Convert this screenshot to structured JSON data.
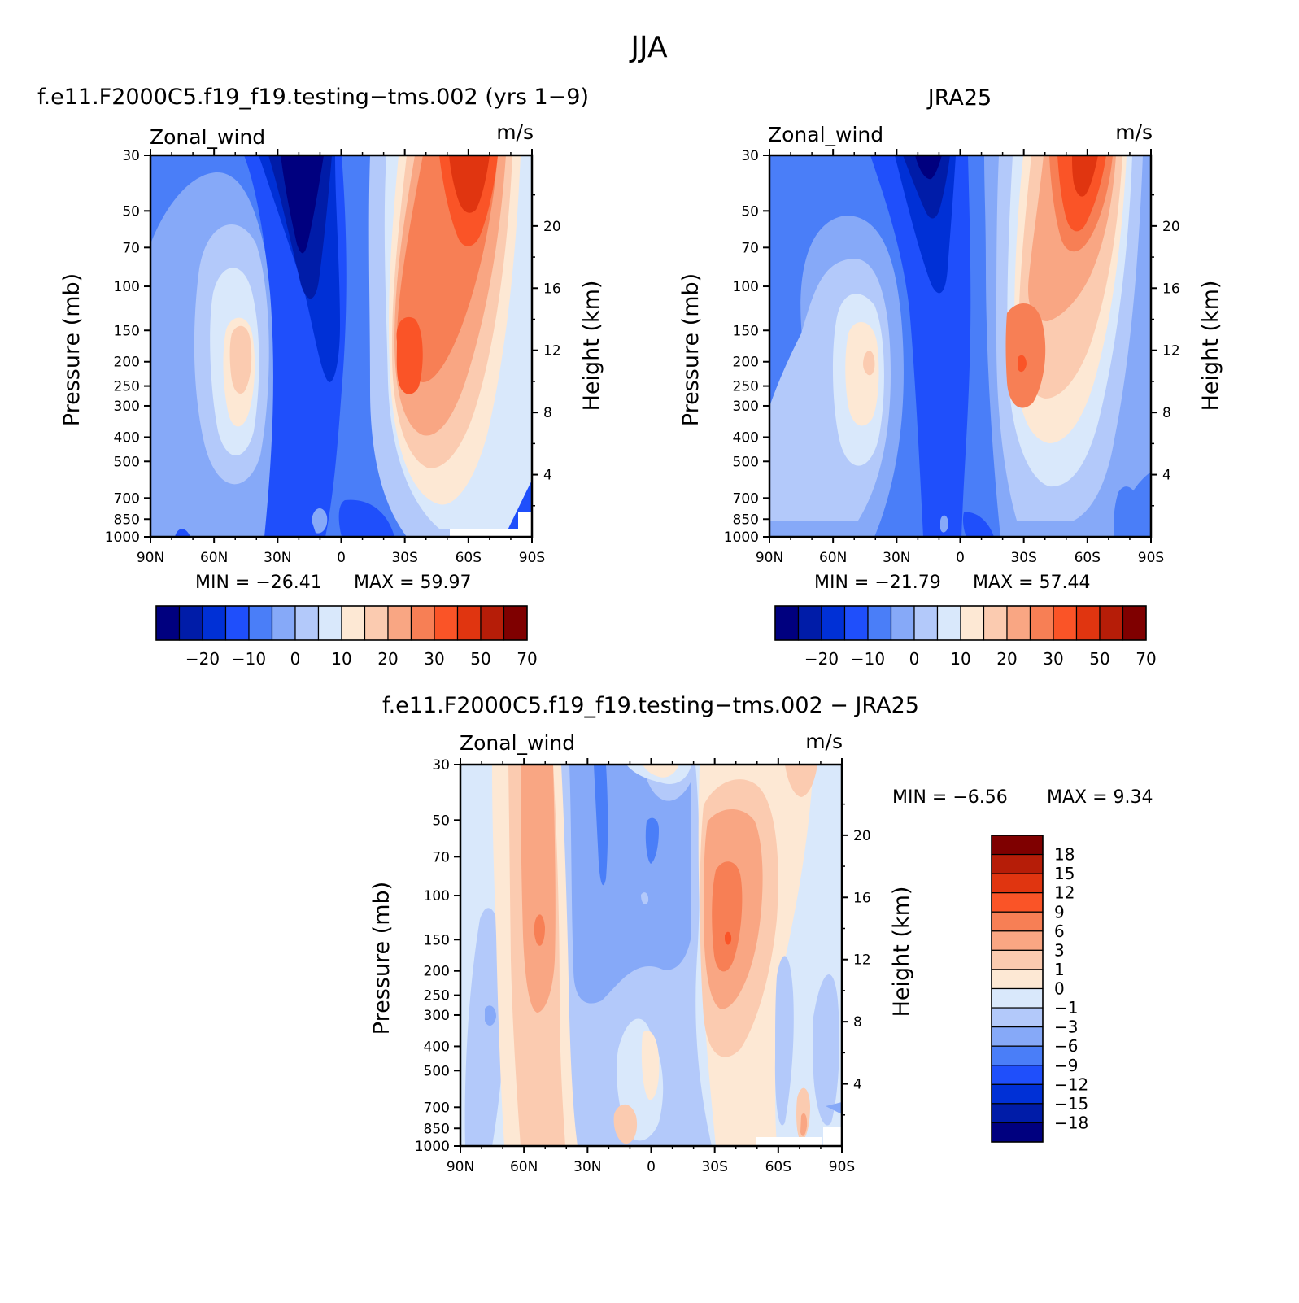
{
  "figure_title": "JJA",
  "colors": {
    "wind_palette": [
      "#00007f",
      "#001ca8",
      "#0030d6",
      "#1f4ffb",
      "#4a7ef8",
      "#86a9f8",
      "#b3c9fa",
      "#d9e8fb",
      "#fde8d4",
      "#fbcbb0",
      "#f9a683",
      "#f77f55",
      "#fa5427",
      "#e03510",
      "#b61d08",
      "#7f0000"
    ],
    "diff_palette": [
      "#00007f",
      "#001ca8",
      "#0030d6",
      "#1f4ffb",
      "#4a7ef8",
      "#86a9f8",
      "#b3c9fa",
      "#d9e8fb",
      "#fde8d4",
      "#fbcbb0",
      "#f9a683",
      "#f77f55",
      "#fa5427",
      "#e03510",
      "#b61d08",
      "#7f0000"
    ]
  },
  "chart_data": [
    {
      "type": "heatmap",
      "title": "f.e11.F2000C5.f19_f19.testing−tms.002 (yrs 1−9)",
      "left_label": "Zonal_wind",
      "right_label": "m/s",
      "ylabel": "Pressure (mb)",
      "y2label": "Height (km)",
      "xticks": [
        "90N",
        "60N",
        "30N",
        "0",
        "30S",
        "60S",
        "90S"
      ],
      "yticks": [
        "30",
        "50",
        "70",
        "100",
        "150",
        "200",
        "250",
        "300",
        "400",
        "500",
        "700",
        "850",
        "1000"
      ],
      "y2ticks": [
        "20",
        "16",
        "12",
        "8",
        "4"
      ],
      "ylim": [
        1000,
        30
      ],
      "y_scale": "log",
      "min_text": "MIN = −26.41",
      "max_text": "MAX = 59.97",
      "min": -26.41,
      "max": 59.97,
      "colorbar_labels": [
        "−20",
        "−10",
        "0",
        "10",
        "20",
        "30",
        "50",
        "70"
      ],
      "colorbar_orientation": "horizontal"
    },
    {
      "type": "heatmap",
      "title": "JRA25",
      "left_label": "Zonal_wind",
      "right_label": "m/s",
      "ylabel": "Pressure (mb)",
      "y2label": "Height (km)",
      "xticks": [
        "90N",
        "60N",
        "30N",
        "0",
        "30S",
        "60S",
        "90S"
      ],
      "yticks": [
        "30",
        "50",
        "70",
        "100",
        "150",
        "200",
        "250",
        "300",
        "400",
        "500",
        "700",
        "850",
        "1000"
      ],
      "y2ticks": [
        "20",
        "16",
        "12",
        "8",
        "4"
      ],
      "ylim": [
        1000,
        30
      ],
      "y_scale": "log",
      "min_text": "MIN = −21.79",
      "max_text": "MAX = 57.44",
      "min": -21.79,
      "max": 57.44,
      "colorbar_labels": [
        "−20",
        "−10",
        "0",
        "10",
        "20",
        "30",
        "50",
        "70"
      ],
      "colorbar_orientation": "horizontal"
    },
    {
      "type": "heatmap",
      "title": "f.e11.F2000C5.f19_f19.testing−tms.002 − JRA25",
      "left_label": "Zonal_wind",
      "right_label": "m/s",
      "ylabel": "Pressure (mb)",
      "y2label": "Height (km)",
      "xticks": [
        "90N",
        "60N",
        "30N",
        "0",
        "30S",
        "60S",
        "90S"
      ],
      "yticks": [
        "30",
        "50",
        "70",
        "100",
        "150",
        "200",
        "250",
        "300",
        "400",
        "500",
        "700",
        "850",
        "1000"
      ],
      "y2ticks": [
        "20",
        "16",
        "12",
        "8",
        "4"
      ],
      "ylim": [
        1000,
        30
      ],
      "y_scale": "log",
      "min_text": "MIN = −6.56",
      "max_text": "MAX = 9.34",
      "min": -6.56,
      "max": 9.34,
      "colorbar_labels": [
        "18",
        "15",
        "12",
        "9",
        "6",
        "3",
        "1",
        "0",
        "−1",
        "−3",
        "−6",
        "−9",
        "−12",
        "−15",
        "−18"
      ],
      "colorbar_orientation": "vertical"
    }
  ]
}
